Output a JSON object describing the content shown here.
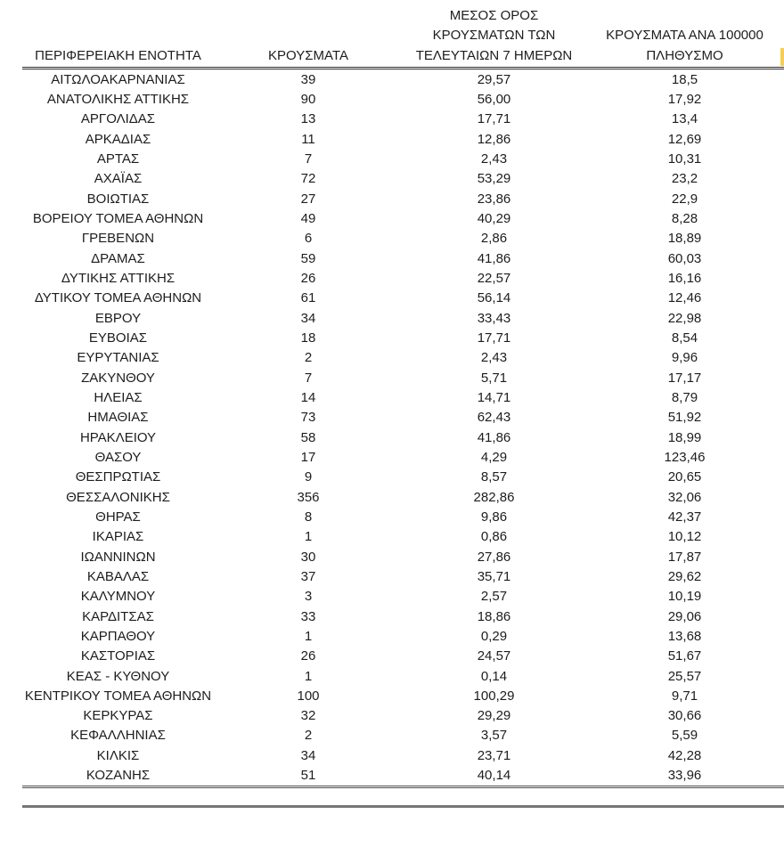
{
  "table": {
    "columns": [
      {
        "id": "region",
        "label": "ΠΕΡΙΦΕΡΕΙΑΚΗ ΕΝΟΤΗΤΑ"
      },
      {
        "id": "cases",
        "label": "ΚΡΟΥΣΜΑΤΑ"
      },
      {
        "id": "avg7",
        "label": "ΜΕΣΟΣ ΟΡΟΣ\nΚΡΟΥΣΜΑΤΩΝ ΤΩΝ\nΤΕΛΕΥΤΑΙΩΝ 7 ΗΜΕΡΩΝ"
      },
      {
        "id": "per100k",
        "label": "ΚΡΟΥΣΜΑΤΑ ΑΝΑ 100000\nΠΛΗΘΥΣΜΟ"
      }
    ],
    "rows": [
      [
        "ΑΙΤΩΛΟΑΚΑΡΝΑΝΙΑΣ",
        "39",
        "29,57",
        "18,5"
      ],
      [
        "ΑΝΑΤΟΛΙΚΗΣ ΑΤΤΙΚΗΣ",
        "90",
        "56,00",
        "17,92"
      ],
      [
        "ΑΡΓΟΛΙΔΑΣ",
        "13",
        "17,71",
        "13,4"
      ],
      [
        "ΑΡΚΑΔΙΑΣ",
        "11",
        "12,86",
        "12,69"
      ],
      [
        "ΑΡΤΑΣ",
        "7",
        "2,43",
        "10,31"
      ],
      [
        "ΑΧΑΪΑΣ",
        "72",
        "53,29",
        "23,2"
      ],
      [
        "ΒΟΙΩΤΙΑΣ",
        "27",
        "23,86",
        "22,9"
      ],
      [
        "ΒΟΡΕΙΟΥ ΤΟΜΕΑ ΑΘΗΝΩΝ",
        "49",
        "40,29",
        "8,28"
      ],
      [
        "ΓΡΕΒΕΝΩΝ",
        "6",
        "2,86",
        "18,89"
      ],
      [
        "ΔΡΑΜΑΣ",
        "59",
        "41,86",
        "60,03"
      ],
      [
        "ΔΥΤΙΚΗΣ ΑΤΤΙΚΗΣ",
        "26",
        "22,57",
        "16,16"
      ],
      [
        "ΔΥΤΙΚΟΥ ΤΟΜΕΑ ΑΘΗΝΩΝ",
        "61",
        "56,14",
        "12,46"
      ],
      [
        "ΕΒΡΟΥ",
        "34",
        "33,43",
        "22,98"
      ],
      [
        "ΕΥΒΟΙΑΣ",
        "18",
        "17,71",
        "8,54"
      ],
      [
        "ΕΥΡΥΤΑΝΙΑΣ",
        "2",
        "2,43",
        "9,96"
      ],
      [
        "ΖΑΚΥΝΘΟΥ",
        "7",
        "5,71",
        "17,17"
      ],
      [
        "ΗΛΕΙΑΣ",
        "14",
        "14,71",
        "8,79"
      ],
      [
        "ΗΜΑΘΙΑΣ",
        "73",
        "62,43",
        "51,92"
      ],
      [
        "ΗΡΑΚΛΕΙΟΥ",
        "58",
        "41,86",
        "18,99"
      ],
      [
        "ΘΑΣΟΥ",
        "17",
        "4,29",
        "123,46"
      ],
      [
        "ΘΕΣΠΡΩΤΙΑΣ",
        "9",
        "8,57",
        "20,65"
      ],
      [
        "ΘΕΣΣΑΛΟΝΙΚΗΣ",
        "356",
        "282,86",
        "32,06"
      ],
      [
        "ΘΗΡΑΣ",
        "8",
        "9,86",
        "42,37"
      ],
      [
        "ΙΚΑΡΙΑΣ",
        "1",
        "0,86",
        "10,12"
      ],
      [
        "ΙΩΑΝΝΙΝΩΝ",
        "30",
        "27,86",
        "17,87"
      ],
      [
        "ΚΑΒΑΛΑΣ",
        "37",
        "35,71",
        "29,62"
      ],
      [
        "ΚΑΛΥΜΝΟΥ",
        "3",
        "2,57",
        "10,19"
      ],
      [
        "ΚΑΡΔΙΤΣΑΣ",
        "33",
        "18,86",
        "29,06"
      ],
      [
        "ΚΑΡΠΑΘΟΥ",
        "1",
        "0,29",
        "13,68"
      ],
      [
        "ΚΑΣΤΟΡΙΑΣ",
        "26",
        "24,57",
        "51,67"
      ],
      [
        "ΚΕΑΣ - ΚΥΘΝΟΥ",
        "1",
        "0,14",
        "25,57"
      ],
      [
        "ΚΕΝΤΡΙΚΟΥ ΤΟΜΕΑ ΑΘΗΝΩΝ",
        "100",
        "100,29",
        "9,71"
      ],
      [
        "ΚΕΡΚΥΡΑΣ",
        "32",
        "29,29",
        "30,66"
      ],
      [
        "ΚΕΦΑΛΛΗΝΙΑΣ",
        "2",
        "3,57",
        "5,59"
      ],
      [
        "ΚΙΛΚΙΣ",
        "34",
        "23,71",
        "42,28"
      ],
      [
        "ΚΟΖΑΝΗΣ",
        "51",
        "40,14",
        "33,96"
      ]
    ]
  },
  "colors": {
    "text": "#1d1d1d",
    "header_rule": "#2d2d2d",
    "table_bottom_rule": "#4f4f4f",
    "footer_rule": "#767676",
    "highlight": "#f6cd55"
  }
}
